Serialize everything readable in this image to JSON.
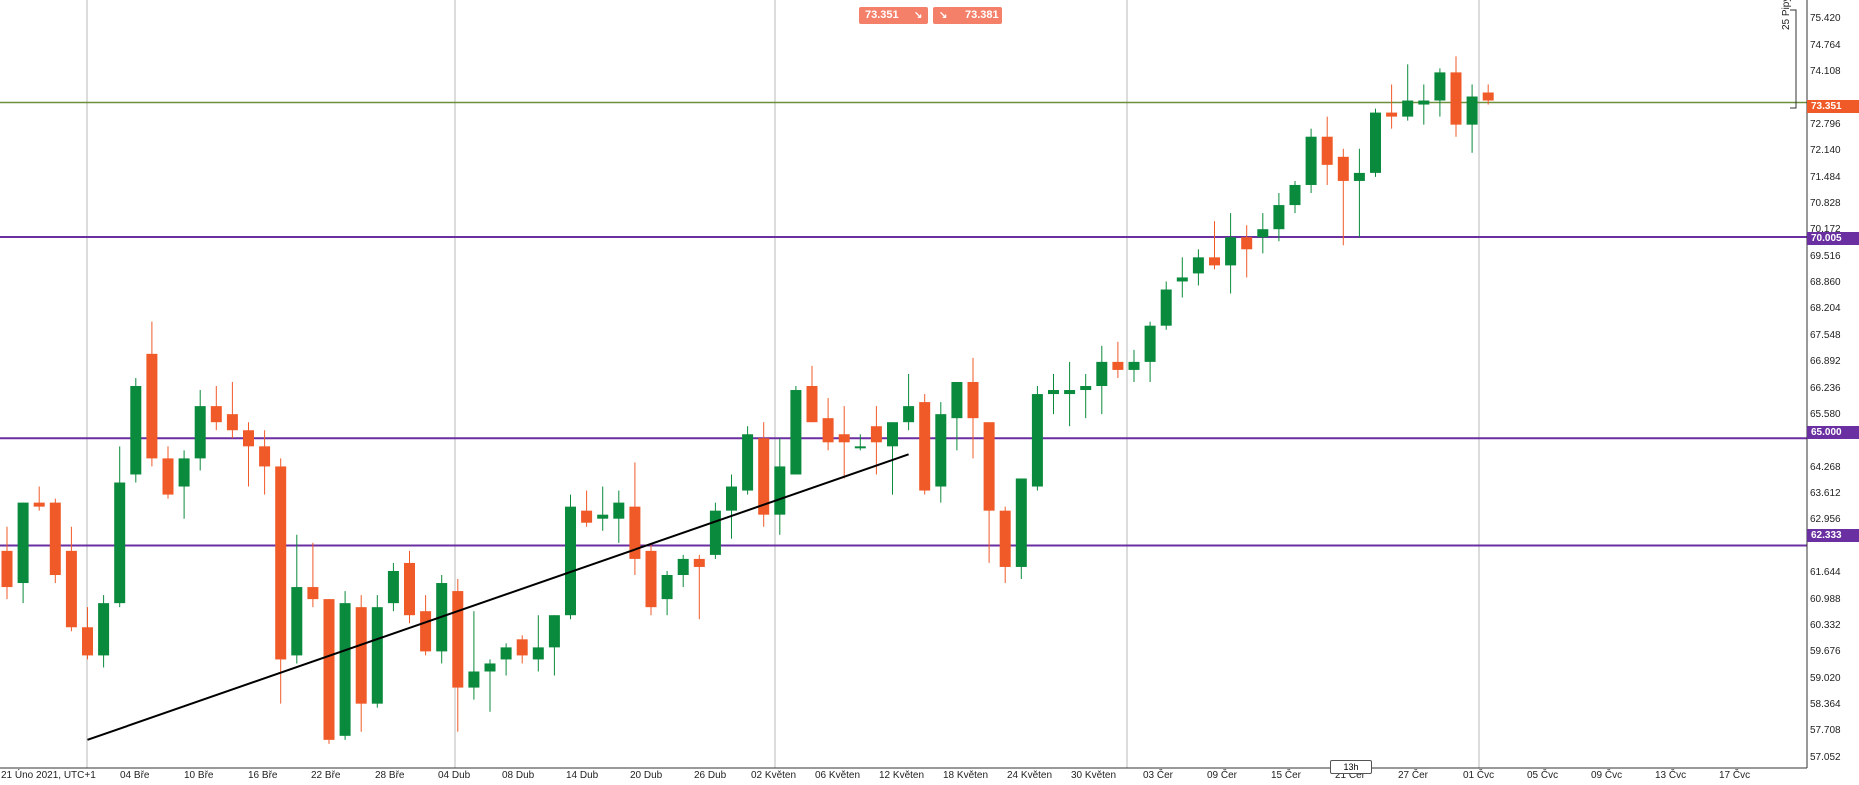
{
  "header": {
    "sell_price": "73.351",
    "sell_arrow": "↘",
    "buy_arrow": "↘",
    "buy_price": "73.381"
  },
  "pips_label": "25 Pipy",
  "current_price_tag": "73.351",
  "level_tags": [
    "70.005",
    "65.000",
    "62.333"
  ],
  "x_badge": "13h",
  "colors": {
    "up": "#0a8a3c",
    "down": "#f05a28",
    "level": "#6a2fa0",
    "current": "#f05a28",
    "trendline": "#000000"
  },
  "chart_data": {
    "type": "candlestick",
    "y_ticks": [
      "75.420",
      "74.764",
      "74.108",
      "72.796",
      "72.140",
      "71.484",
      "70.828",
      "70.172",
      "69.516",
      "68.860",
      "68.204",
      "67.548",
      "66.892",
      "66.236",
      "65.580",
      "64.268",
      "63.612",
      "62.956",
      "61.644",
      "60.988",
      "60.332",
      "59.676",
      "59.020",
      "58.364",
      "57.708",
      "57.052"
    ],
    "x_labels": [
      "21 Úno 2021, UTC+1",
      "04 Bře",
      "10 Bře",
      "16 Bře",
      "22 Bře",
      "28 Bře",
      "04 Dub",
      "08 Dub",
      "14 Dub",
      "20 Dub",
      "26 Dub",
      "02 Květen",
      "06 Květen",
      "12 Květen",
      "18 Květen",
      "24 Květen",
      "30 Květen",
      "03 Čer",
      "09 Čer",
      "15 Čer",
      "21 Čer",
      "27 Čer",
      "01 Čvc",
      "05 Čvc",
      "09 Čvc",
      "13 Čvc",
      "17 Čvc"
    ],
    "ylim": [
      56.8,
      75.9
    ],
    "horizontal_levels": [
      70.005,
      65.0,
      62.333
    ],
    "current_price": 73.351,
    "trendline": [
      [
        0,
        57.5
      ],
      [
        46.5,
        64.6
      ]
    ],
    "candles": [
      [
        62.2,
        62.8,
        61.0,
        61.3
      ],
      [
        61.4,
        63.4,
        60.9,
        63.4
      ],
      [
        63.4,
        63.8,
        63.2,
        63.3
      ],
      [
        63.4,
        63.5,
        61.4,
        61.6
      ],
      [
        62.2,
        62.8,
        60.2,
        60.3
      ],
      [
        60.3,
        60.8,
        59.5,
        59.6
      ],
      [
        59.6,
        61.1,
        59.3,
        60.9
      ],
      [
        60.9,
        64.8,
        60.8,
        63.9
      ],
      [
        64.1,
        66.5,
        63.9,
        66.3
      ],
      [
        67.1,
        67.9,
        64.3,
        64.5
      ],
      [
        64.5,
        64.8,
        63.5,
        63.6
      ],
      [
        63.8,
        64.7,
        63.0,
        64.5
      ],
      [
        64.5,
        66.2,
        64.2,
        65.8
      ],
      [
        65.8,
        66.3,
        65.2,
        65.4
      ],
      [
        65.6,
        66.4,
        65.0,
        65.2
      ],
      [
        65.2,
        65.4,
        63.8,
        64.8
      ],
      [
        64.8,
        65.2,
        63.6,
        64.3
      ],
      [
        64.3,
        64.5,
        58.4,
        59.5
      ],
      [
        59.6,
        62.6,
        59.4,
        61.3
      ],
      [
        61.3,
        62.4,
        60.8,
        61.0
      ],
      [
        61.0,
        61.0,
        57.4,
        57.5
      ],
      [
        57.6,
        61.2,
        57.5,
        60.9
      ],
      [
        60.8,
        61.1,
        57.7,
        58.4
      ],
      [
        58.4,
        61.1,
        58.3,
        60.8
      ],
      [
        60.9,
        61.9,
        60.7,
        61.7
      ],
      [
        61.9,
        62.2,
        60.4,
        60.6
      ],
      [
        60.7,
        61.1,
        59.6,
        59.7
      ],
      [
        59.7,
        61.6,
        59.4,
        61.4
      ],
      [
        61.2,
        61.5,
        57.7,
        58.8
      ],
      [
        58.8,
        60.7,
        58.5,
        59.2
      ],
      [
        59.2,
        59.5,
        58.2,
        59.4
      ],
      [
        59.5,
        59.9,
        59.1,
        59.8
      ],
      [
        60.0,
        60.1,
        59.4,
        59.6
      ],
      [
        59.5,
        60.6,
        59.2,
        59.8
      ],
      [
        59.8,
        60.6,
        59.1,
        60.6
      ],
      [
        60.6,
        63.6,
        60.5,
        63.3
      ],
      [
        63.2,
        63.7,
        62.8,
        62.9
      ],
      [
        63.0,
        63.8,
        62.7,
        63.1
      ],
      [
        63.0,
        63.7,
        62.4,
        63.4
      ],
      [
        63.3,
        64.4,
        61.6,
        62.0
      ],
      [
        62.2,
        62.4,
        60.6,
        60.8
      ],
      [
        61.0,
        61.7,
        60.6,
        61.6
      ],
      [
        61.6,
        62.1,
        61.3,
        62.0
      ],
      [
        62.0,
        62.1,
        60.5,
        61.8
      ],
      [
        62.1,
        63.4,
        62.0,
        63.2
      ],
      [
        63.2,
        64.1,
        62.5,
        63.8
      ],
      [
        63.7,
        65.3,
        63.6,
        65.1
      ],
      [
        65.0,
        65.4,
        62.8,
        63.1
      ],
      [
        63.1,
        65.0,
        62.6,
        64.3
      ],
      [
        64.1,
        66.3,
        64.1,
        66.2
      ],
      [
        66.3,
        66.8,
        65.4,
        65.4
      ],
      [
        65.5,
        66.0,
        64.7,
        64.9
      ],
      [
        65.1,
        65.8,
        64.0,
        64.9
      ],
      [
        64.8,
        65.1,
        64.7,
        64.8
      ],
      [
        65.3,
        65.8,
        64.1,
        64.9
      ],
      [
        64.8,
        65.4,
        63.6,
        65.4
      ],
      [
        65.4,
        66.6,
        65.2,
        65.8
      ],
      [
        65.9,
        66.1,
        63.6,
        63.7
      ],
      [
        63.8,
        65.9,
        63.4,
        65.6
      ],
      [
        65.5,
        66.4,
        64.7,
        66.4
      ],
      [
        66.4,
        67.0,
        64.5,
        65.5
      ],
      [
        65.4,
        65.4,
        61.9,
        63.2
      ],
      [
        63.2,
        63.3,
        61.4,
        61.8
      ],
      [
        61.8,
        64.0,
        61.5,
        64.0
      ],
      [
        63.8,
        66.3,
        63.7,
        66.1
      ],
      [
        66.1,
        66.6,
        65.6,
        66.2
      ],
      [
        66.1,
        66.9,
        65.3,
        66.2
      ],
      [
        66.2,
        66.6,
        65.5,
        66.3
      ],
      [
        66.3,
        67.3,
        65.6,
        66.9
      ],
      [
        66.9,
        67.4,
        66.5,
        66.7
      ],
      [
        66.7,
        67.2,
        66.4,
        66.9
      ],
      [
        66.9,
        67.9,
        66.4,
        67.8
      ],
      [
        67.8,
        68.9,
        67.7,
        68.7
      ],
      [
        68.9,
        69.5,
        68.5,
        69.0
      ],
      [
        69.1,
        69.7,
        68.8,
        69.5
      ],
      [
        69.5,
        70.4,
        69.2,
        69.3
      ],
      [
        69.3,
        70.6,
        68.6,
        70.0
      ],
      [
        70.0,
        70.3,
        69.0,
        69.7
      ],
      [
        70.0,
        70.6,
        69.6,
        70.2
      ],
      [
        70.2,
        71.1,
        69.9,
        70.8
      ],
      [
        70.8,
        71.4,
        70.6,
        71.3
      ],
      [
        71.3,
        72.7,
        71.1,
        72.5
      ],
      [
        72.5,
        73.0,
        71.3,
        71.8
      ],
      [
        72.0,
        72.2,
        69.8,
        71.4
      ],
      [
        71.4,
        72.2,
        70.0,
        71.6
      ],
      [
        71.6,
        73.2,
        71.5,
        73.1
      ],
      [
        73.1,
        73.8,
        72.7,
        73.0
      ],
      [
        73.0,
        74.3,
        72.9,
        73.4
      ],
      [
        73.3,
        73.8,
        72.8,
        73.4
      ],
      [
        73.4,
        74.2,
        73.0,
        74.1
      ],
      [
        74.1,
        74.5,
        72.5,
        72.8
      ],
      [
        72.8,
        73.8,
        72.1,
        73.5
      ],
      [
        73.6,
        73.8,
        73.3,
        73.4
      ]
    ]
  }
}
